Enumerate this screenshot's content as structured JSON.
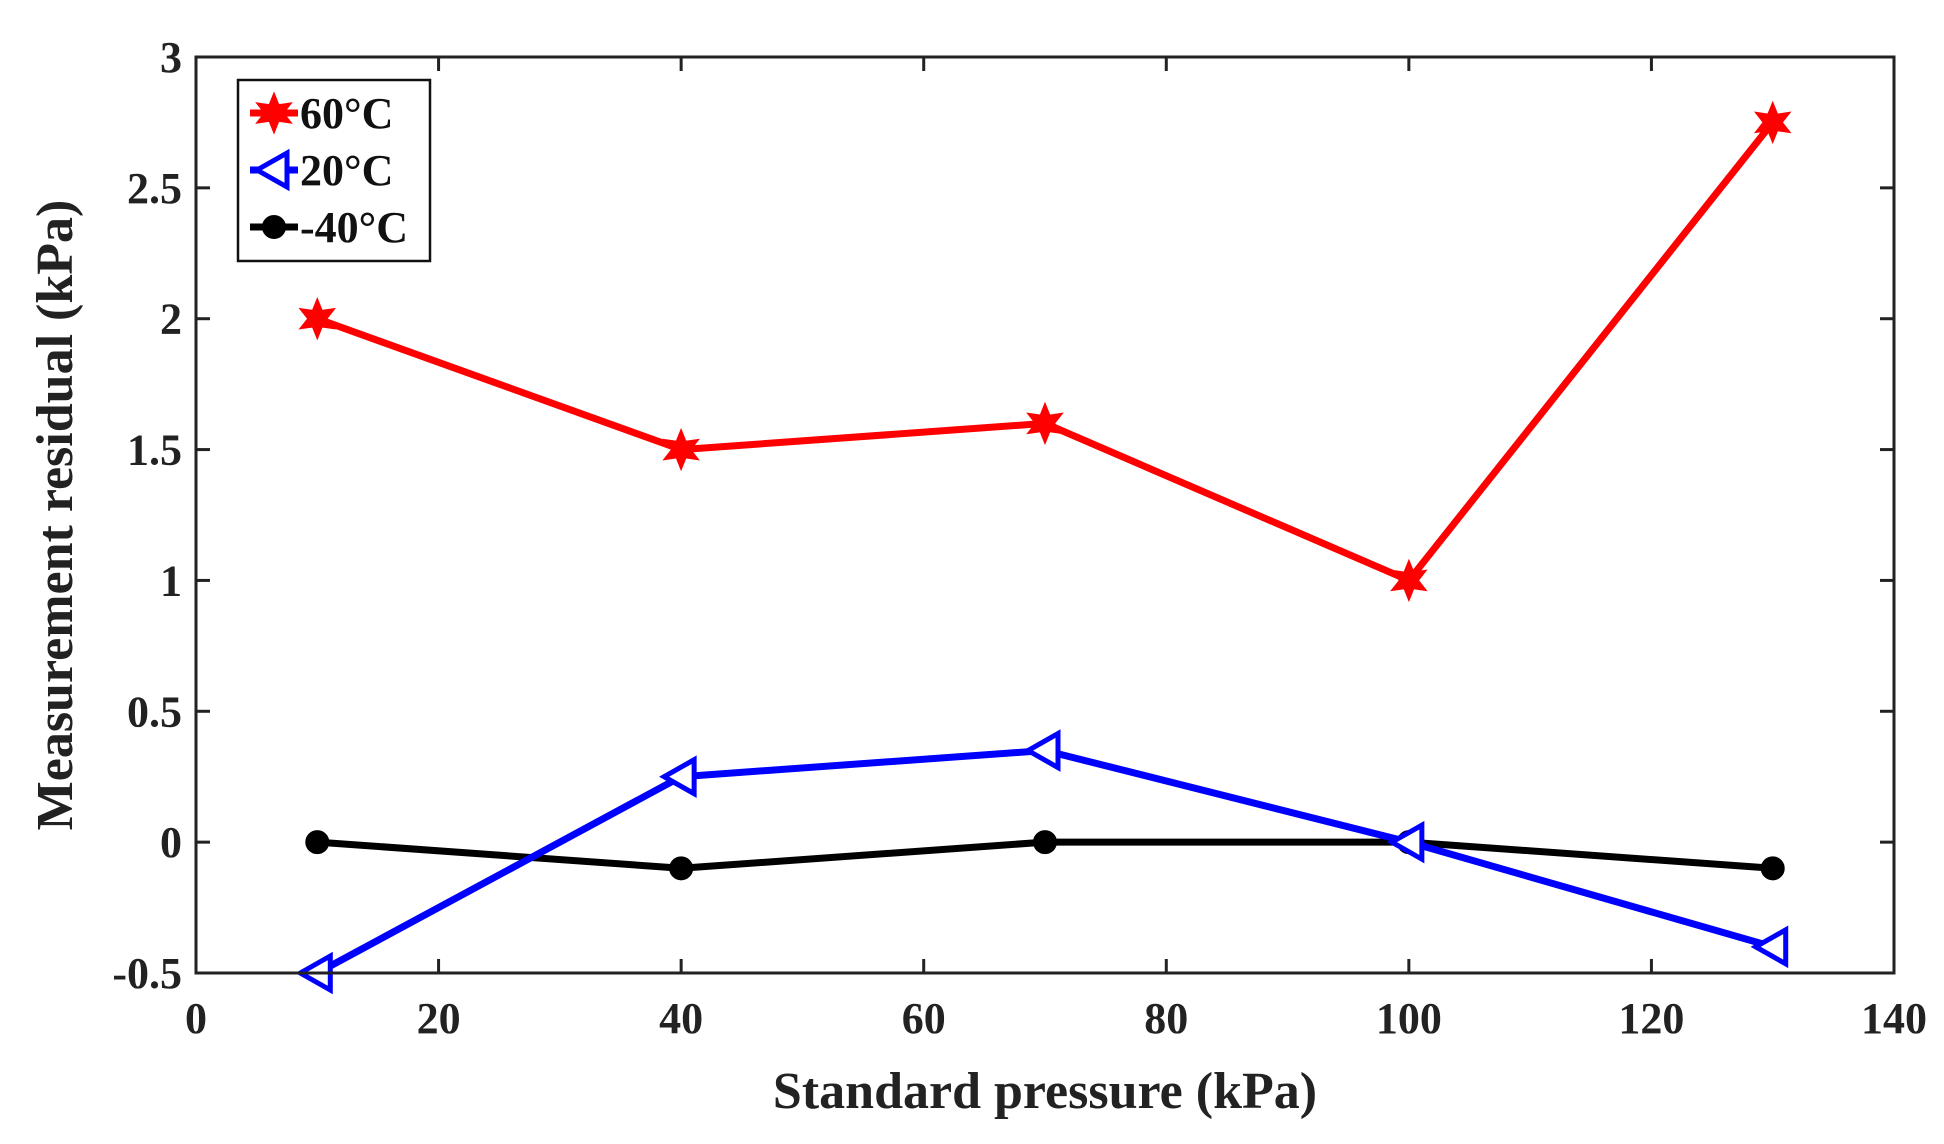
{
  "chart_data": {
    "type": "line",
    "title": "",
    "xlabel": "Standard pressure (kPa)",
    "ylabel": "Measurement residual (kPa)",
    "xlim": [
      0,
      140
    ],
    "ylim": [
      -0.5,
      3
    ],
    "xticks": [
      0,
      20,
      40,
      60,
      80,
      100,
      120,
      140
    ],
    "xtick_labels": [
      "0",
      "20",
      "40",
      "60",
      "80",
      "100",
      "120",
      "140"
    ],
    "yticks": [
      -0.5,
      0,
      0.5,
      1,
      1.5,
      2,
      2.5,
      3
    ],
    "ytick_labels": [
      "-0.5",
      "0",
      "0.5",
      "1",
      "1.5",
      "2",
      "2.5",
      "3"
    ],
    "grid": false,
    "legend_position": "top-left",
    "series": [
      {
        "name": "60°C",
        "color": "#ff0000",
        "marker": "star",
        "x": [
          10,
          40,
          70,
          100,
          130
        ],
        "y": [
          2.0,
          1.5,
          1.6,
          1.0,
          2.75
        ]
      },
      {
        "name": "20°C",
        "color": "#0000ff",
        "marker": "triangle-left",
        "x": [
          10,
          40,
          70,
          100,
          130
        ],
        "y": [
          -0.5,
          0.25,
          0.35,
          0.0,
          -0.4
        ]
      },
      {
        "name": "-40°C",
        "color": "#000000",
        "marker": "circle",
        "x": [
          10,
          40,
          70,
          100,
          130
        ],
        "y": [
          0.0,
          -0.1,
          0.0,
          0.0,
          -0.1
        ]
      }
    ]
  }
}
